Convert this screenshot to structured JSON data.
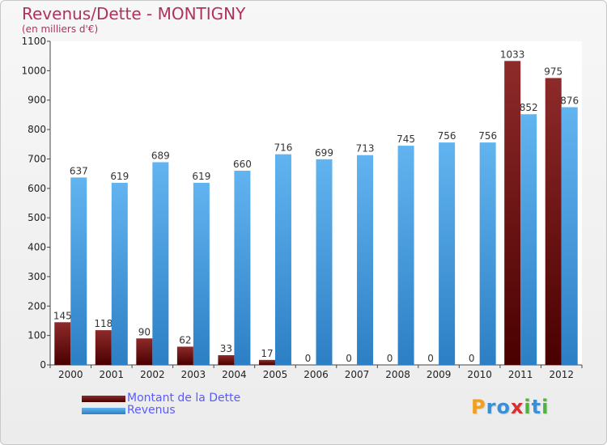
{
  "chart_data": {
    "type": "bar",
    "title": "Revenus/Dette - MONTIGNY",
    "subtitle": "(en milliers d'€)",
    "categories": [
      "2000",
      "2001",
      "2002",
      "2003",
      "2004",
      "2005",
      "2006",
      "2007",
      "2008",
      "2009",
      "2010",
      "2011",
      "2012"
    ],
    "series": [
      {
        "name": "Montant de la Dette",
        "color": "#7a1010",
        "values": [
          145,
          118,
          90,
          62,
          33,
          17,
          0,
          0,
          0,
          0,
          0,
          1033,
          975
        ]
      },
      {
        "name": "Revenus",
        "color": "#4a9fe0",
        "values": [
          637,
          619,
          689,
          619,
          660,
          716,
          699,
          713,
          745,
          756,
          756,
          852,
          876
        ]
      }
    ],
    "ylim": [
      0,
      1100
    ],
    "yticks": [
      0,
      100,
      200,
      300,
      400,
      500,
      600,
      700,
      800,
      900,
      1000,
      1100
    ],
    "grid": false,
    "legend_position": "bottom-left"
  },
  "logo": {
    "letters": [
      {
        "ch": "P",
        "color": "#f0a020"
      },
      {
        "ch": "r",
        "color": "#3a8fd8"
      },
      {
        "ch": "o",
        "color": "#3a8fd8"
      },
      {
        "ch": "x",
        "color": "#d83030"
      },
      {
        "ch": "i",
        "color": "#50b040"
      },
      {
        "ch": "t",
        "color": "#3a8fd8"
      },
      {
        "ch": "i",
        "color": "#50b040"
      }
    ]
  }
}
